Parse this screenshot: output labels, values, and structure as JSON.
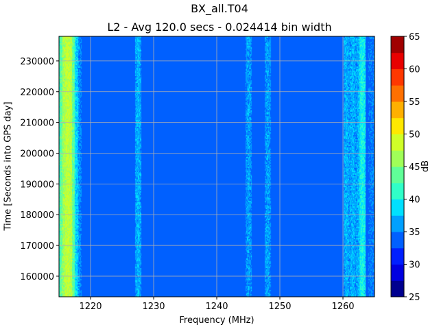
{
  "chart_data": {
    "type": "heatmap",
    "title": "BX_all.T04",
    "subtitle": "L2 - Avg 120.0 secs - 0.024414 bin width",
    "xlabel": "Frequency (MHz)",
    "ylabel": "Time [Seconds into GPS day]",
    "xlim": [
      1215,
      1265
    ],
    "ylim": [
      153300,
      238000
    ],
    "xticks": [
      1220,
      1230,
      1240,
      1250,
      1260
    ],
    "yticks": [
      160000,
      170000,
      180000,
      190000,
      200000,
      210000,
      220000,
      230000
    ],
    "grid": true,
    "colorbar": {
      "label": "dB",
      "range": [
        25,
        65
      ],
      "step": 2.5,
      "ticks": [
        25,
        30,
        35,
        40,
        45,
        50,
        55,
        60,
        65
      ],
      "colors": [
        "#00008f",
        "#0000e0",
        "#0020ff",
        "#0060ff",
        "#00a0ff",
        "#00e0ff",
        "#30ffc8",
        "#60ff98",
        "#a0ff58",
        "#d0ff28",
        "#ffe800",
        "#ffb000",
        "#ff7000",
        "#ff3800",
        "#e80000",
        "#a00000"
      ]
    },
    "frequency_profile_db": {
      "frequency_mhz": [
        1215,
        1215.5,
        1216,
        1216.5,
        1217,
        1217.5,
        1218,
        1227.5,
        1245,
        1248,
        1260.5,
        1261.5,
        1262.5,
        1263,
        1264.5
      ],
      "db": [
        40,
        44,
        47,
        48,
        44,
        39,
        36,
        37,
        36.5,
        36.5,
        37,
        37,
        37,
        40,
        35
      ]
    },
    "background_db": 34
  }
}
